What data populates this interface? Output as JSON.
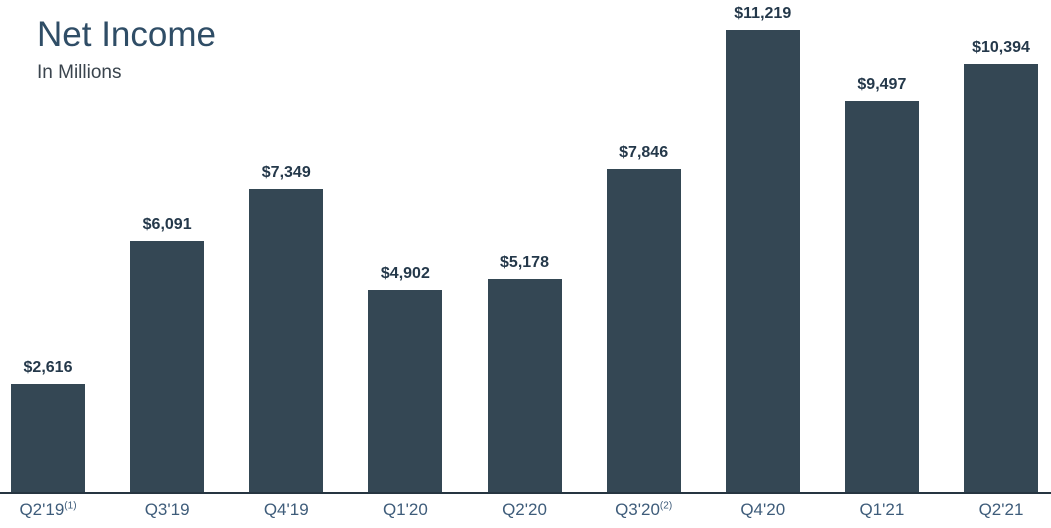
{
  "header": {
    "title": "Net Income",
    "subtitle": "In Millions",
    "title_color": "#2f4d66",
    "subtitle_color": "#3a444d"
  },
  "chart_data": {
    "type": "bar",
    "title": "Net Income",
    "subtitle": "In Millions",
    "categories": [
      "Q2'19",
      "Q3'19",
      "Q4'19",
      "Q1'20",
      "Q2'20",
      "Q3'20",
      "Q4'20",
      "Q1'21",
      "Q2'21"
    ],
    "category_superscripts": [
      "(1)",
      "",
      "",
      "",
      "",
      "(2)",
      "",
      "",
      ""
    ],
    "values": [
      2616,
      6091,
      7349,
      4902,
      5178,
      7846,
      11219,
      9497,
      10394
    ],
    "value_labels": [
      "$2,616",
      "$6,091",
      "$7,349",
      "$4,902",
      "$5,178",
      "$7,846",
      "$11,219",
      "$9,497",
      "$10,394"
    ],
    "ylim": [
      0,
      11219
    ],
    "grid": false,
    "legend": false,
    "bar_color": "#344754",
    "axis_line_color": "#263541",
    "value_label_color": "#24384a",
    "category_label_color": "#3e5c7a"
  }
}
